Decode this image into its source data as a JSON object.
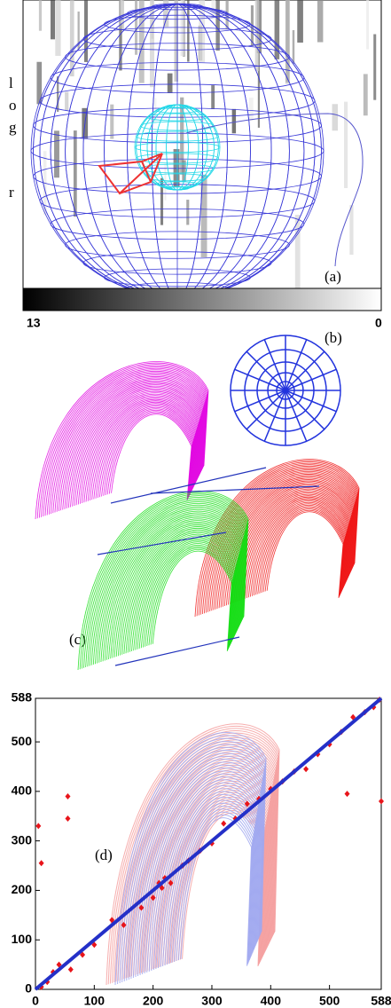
{
  "panel_a": {
    "label": "(a)",
    "side_letters": [
      "l",
      "o",
      "g",
      "r"
    ],
    "colorbar_ticks": [
      13,
      0
    ]
  },
  "panel_b": {
    "label": "(b)"
  },
  "panel_c": {
    "label": "(c)"
  },
  "chart_data": {
    "type": "scatter",
    "label": "(d)",
    "series": [
      {
        "color": "#e8141a",
        "mode": "markers",
        "x": [
          5,
          10,
          55,
          55,
          530,
          588,
          10,
          20,
          30,
          40,
          60,
          80,
          100,
          130,
          150,
          180,
          200,
          210,
          215,
          220,
          230,
          250,
          260,
          280,
          300,
          320,
          340,
          360,
          380,
          400,
          420,
          440,
          460,
          480,
          500,
          520,
          540,
          560,
          575,
          585
        ],
        "values": [
          330,
          255,
          390,
          345,
          395,
          380,
          5,
          15,
          35,
          50,
          40,
          70,
          90,
          140,
          130,
          165,
          185,
          215,
          205,
          225,
          215,
          250,
          260,
          280,
          295,
          335,
          345,
          375,
          385,
          405,
          420,
          440,
          445,
          475,
          495,
          520,
          550,
          560,
          570,
          585
        ]
      },
      {
        "color": "#2430c8",
        "mode": "line",
        "x": [
          0,
          588
        ],
        "values": [
          0,
          588
        ]
      }
    ],
    "xlim": [
      0,
      588
    ],
    "ylim": [
      0,
      588
    ],
    "xticks": [
      0,
      100,
      200,
      300,
      400,
      500,
      588
    ],
    "yticks": [
      0,
      100,
      200,
      300,
      400,
      500,
      588
    ]
  }
}
